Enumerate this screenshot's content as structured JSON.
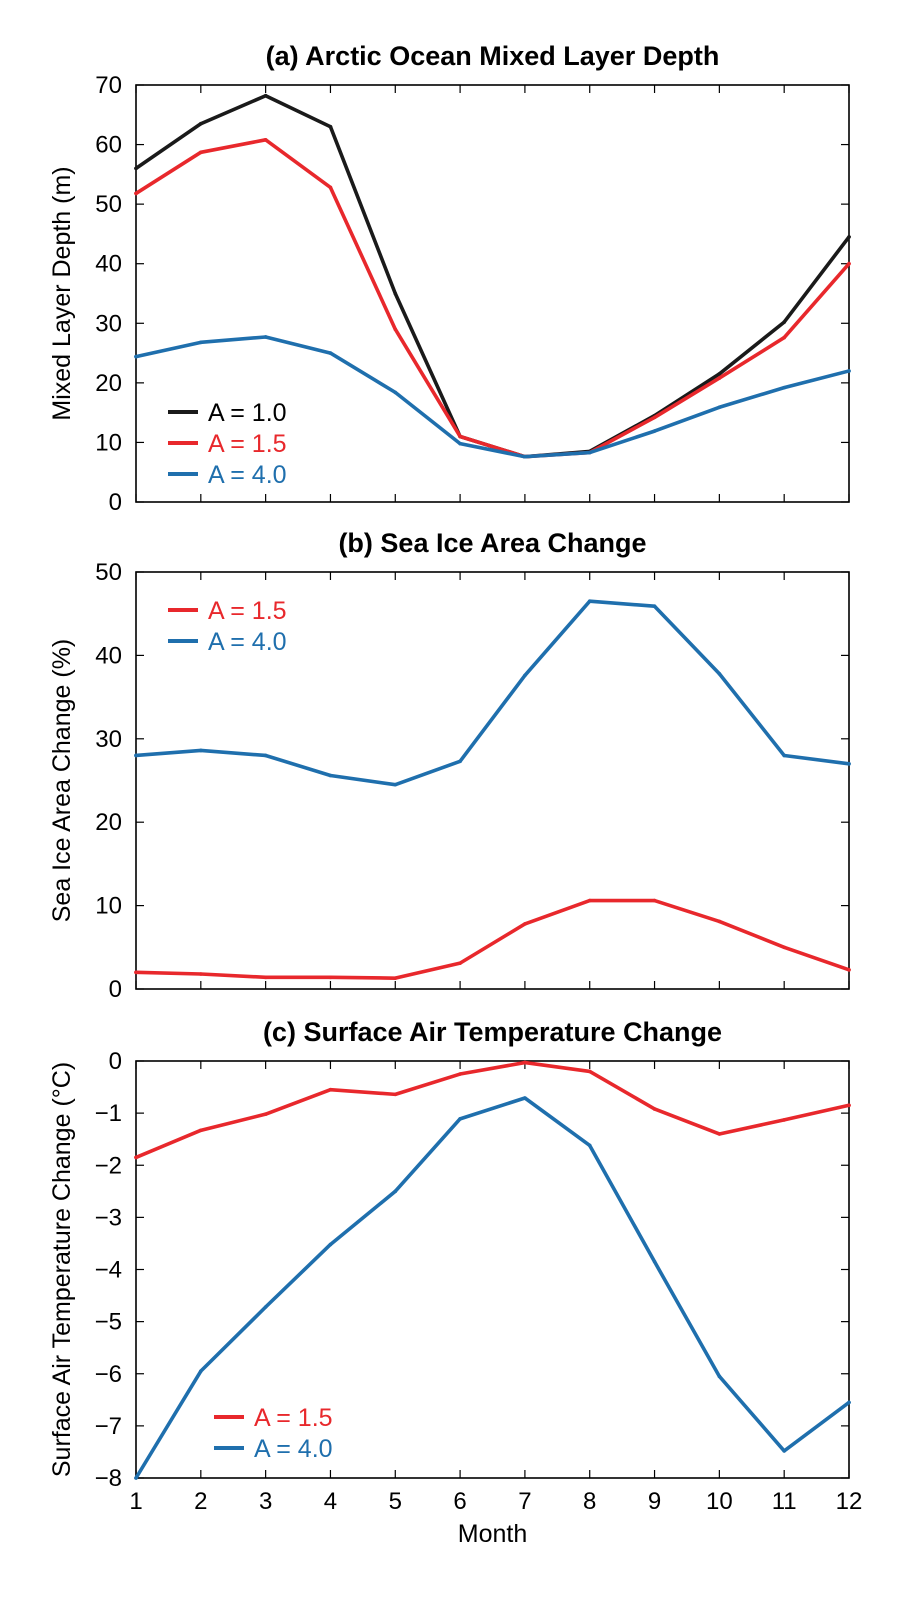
{
  "colors": {
    "A10": "#1a1a1a",
    "A15": "#e8282c",
    "A40": "#1f6fad"
  },
  "chart_data": [
    {
      "type": "line",
      "title": "(a) Arctic Ocean Mixed Layer Depth",
      "xlabel": "",
      "ylabel": "Mixed Layer Depth (m)",
      "xlim": [
        1,
        12
      ],
      "ylim": [
        0,
        70
      ],
      "x_ticks": [
        "",
        "",
        "",
        "",
        "",
        "",
        "",
        "",
        "",
        "",
        "",
        ""
      ],
      "y_ticks": [
        0,
        10,
        20,
        30,
        40,
        50,
        60,
        70
      ],
      "legend_position": "bottom-left",
      "x": [
        1,
        2,
        3,
        4,
        5,
        6,
        7,
        8,
        9,
        10,
        11,
        12
      ],
      "series": [
        {
          "name": "A = 1.0",
          "color": "A10",
          "values": [
            56,
            63.5,
            68.2,
            63,
            35,
            11,
            7.6,
            8.5,
            14.5,
            21.5,
            30.2,
            44.5
          ]
        },
        {
          "name": "A = 1.5",
          "color": "A15",
          "values": [
            51.8,
            58.7,
            60.8,
            52.8,
            29,
            11,
            7.6,
            8.3,
            14.2,
            20.8,
            27.6,
            40
          ]
        },
        {
          "name": "A = 4.0",
          "color": "A40",
          "values": [
            24.4,
            26.8,
            27.7,
            25,
            18.4,
            9.8,
            7.6,
            8.3,
            11.9,
            15.9,
            19.2,
            22
          ]
        }
      ]
    },
    {
      "type": "line",
      "title": "(b) Sea Ice Area Change",
      "xlabel": "",
      "ylabel": "Sea Ice Area Change (%)",
      "xlim": [
        1,
        12
      ],
      "ylim": [
        0,
        50
      ],
      "x_ticks": [
        "",
        "",
        "",
        "",
        "",
        "",
        "",
        "",
        "",
        "",
        "",
        ""
      ],
      "y_ticks": [
        0,
        10,
        20,
        30,
        40,
        50
      ],
      "legend_position": "top-left",
      "x": [
        1,
        2,
        3,
        4,
        5,
        6,
        7,
        8,
        9,
        10,
        11,
        12
      ],
      "series": [
        {
          "name": "A = 1.5",
          "color": "A15",
          "values": [
            2,
            1.8,
            1.4,
            1.4,
            1.3,
            3.1,
            7.8,
            10.6,
            10.6,
            8.1,
            5,
            2.3
          ]
        },
        {
          "name": "A = 4.0",
          "color": "A40",
          "values": [
            28,
            28.6,
            28,
            25.6,
            24.5,
            27.3,
            37.6,
            46.5,
            45.9,
            37.8,
            28,
            27
          ]
        }
      ]
    },
    {
      "type": "line",
      "title": "(c) Surface Air Temperature Change",
      "xlabel": "Month",
      "ylabel": "Surface Air Temperature Change (°C)",
      "xlim": [
        1,
        12
      ],
      "ylim": [
        -8,
        0
      ],
      "x_ticks": [
        "1",
        "2",
        "3",
        "4",
        "5",
        "6",
        "7",
        "8",
        "9",
        "10",
        "11",
        "12"
      ],
      "y_ticks": [
        0,
        -1,
        -2,
        -3,
        -4,
        -5,
        -6,
        -7,
        -8
      ],
      "y_tick_labels": [
        "0",
        "−1",
        "−2",
        "−3",
        "−4",
        "−5",
        "−6",
        "−7",
        "−8"
      ],
      "legend_position": "bottom-left",
      "x": [
        1,
        2,
        3,
        4,
        5,
        6,
        7,
        8,
        9,
        10,
        11,
        12
      ],
      "series": [
        {
          "name": "A = 1.5",
          "color": "A15",
          "values": [
            -1.85,
            -1.33,
            -1.02,
            -0.55,
            -0.64,
            -0.25,
            -0.03,
            -0.2,
            -0.92,
            -1.4,
            -1.13,
            -0.85
          ]
        },
        {
          "name": "A = 4.0",
          "color": "A40",
          "values": [
            -8,
            -5.95,
            -4.72,
            -3.52,
            -2.5,
            -1.11,
            -0.71,
            -1.62,
            -3.85,
            -6.05,
            -7.48,
            -6.55
          ]
        }
      ]
    }
  ]
}
